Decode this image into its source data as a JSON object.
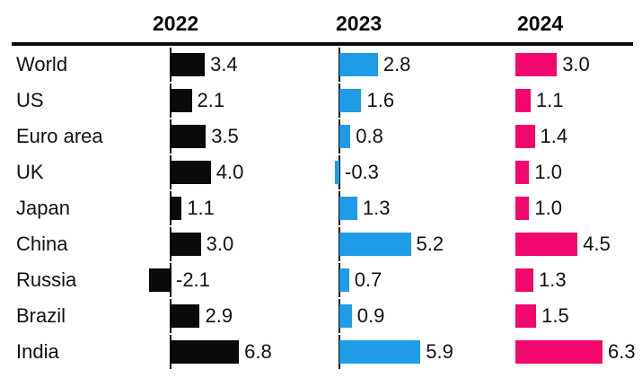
{
  "chart_data": {
    "type": "bar",
    "orientation": "horizontal",
    "title": "",
    "categories": [
      "World",
      "US",
      "Euro area",
      "UK",
      "Japan",
      "China",
      "Russia",
      "Brazil",
      "India"
    ],
    "series": [
      {
        "name": "2022",
        "color": "#0a0a0a",
        "values": [
          3.4,
          2.1,
          3.5,
          4.0,
          1.1,
          3.0,
          -2.1,
          2.9,
          6.8
        ]
      },
      {
        "name": "2023",
        "color": "#1f9ce8",
        "values": [
          2.8,
          1.6,
          0.8,
          -0.3,
          1.3,
          5.2,
          0.7,
          0.9,
          5.9
        ]
      },
      {
        "name": "2024",
        "color": "#f2076d",
        "values": [
          3.0,
          1.1,
          1.4,
          1.0,
          1.0,
          4.5,
          1.3,
          1.5,
          6.3
        ]
      }
    ],
    "value_label_format": "one_decimal",
    "legend_position": "column_headers_top",
    "grid": false,
    "background": "#ffffff",
    "axis_rule_color": "#0a0a0a"
  }
}
